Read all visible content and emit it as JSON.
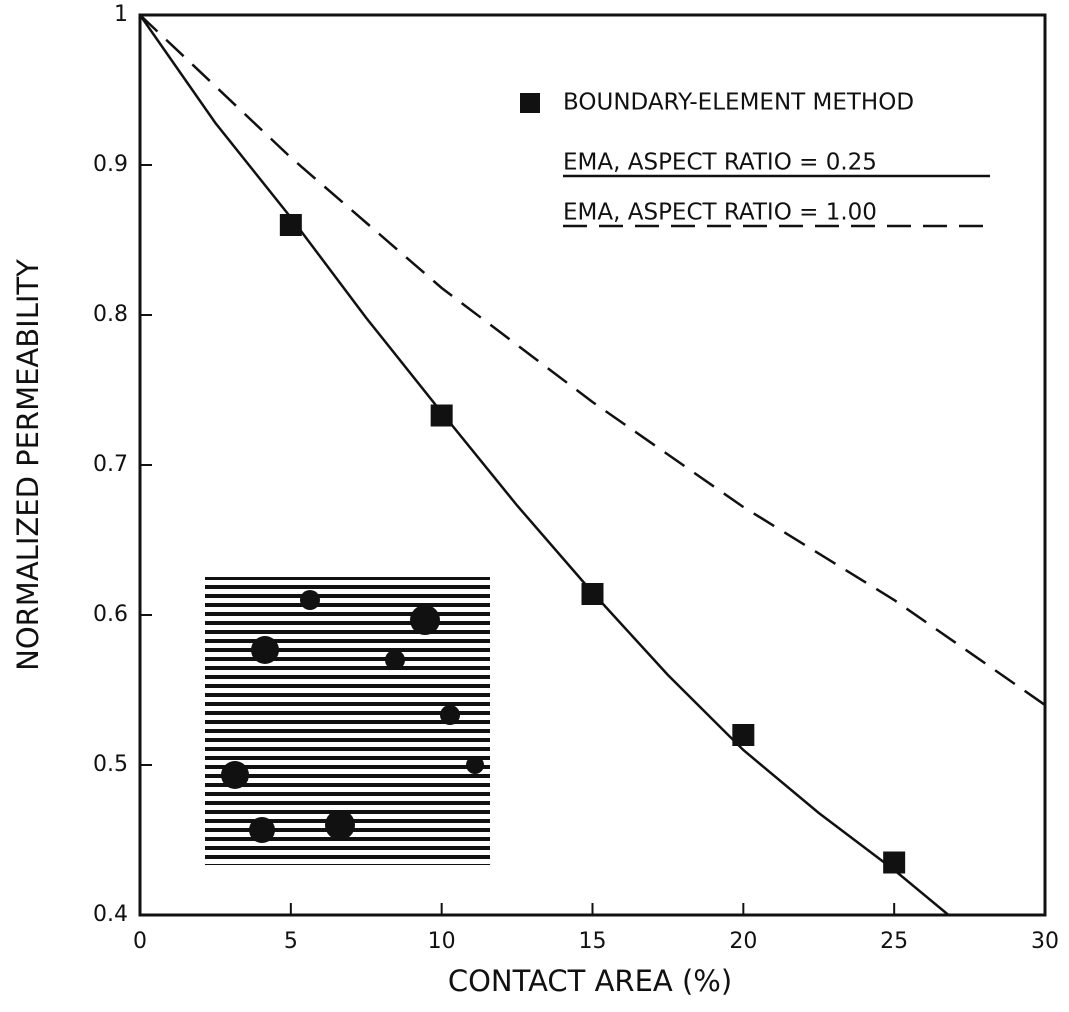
{
  "chart_data": {
    "type": "line",
    "x_label": "CONTACT AREA (%)",
    "y_label": "NORMALIZED PERMEABILITY",
    "xlim": [
      0,
      30
    ],
    "ylim": [
      0.4,
      1
    ],
    "xticks": [
      0,
      5,
      10,
      15,
      20,
      25,
      30
    ],
    "yticks": [
      0.4,
      0.5,
      0.6,
      0.7,
      0.8,
      0.9,
      1
    ],
    "series": [
      {
        "name": "BOUNDARY-ELEMENT METHOD",
        "color": "#111111",
        "style": "markers",
        "x": [
          5,
          10,
          15,
          20,
          25
        ],
        "values": [
          0.86,
          0.733,
          0.614,
          0.52,
          0.435
        ]
      },
      {
        "name": "EMA, ASPECT RATIO = 0.25",
        "color": "#111111",
        "style": "solid",
        "x": [
          0,
          2.5,
          5,
          7.5,
          10,
          12.5,
          15,
          17.5,
          20,
          22.5,
          25,
          26.8
        ],
        "values": [
          1,
          0.928,
          0.865,
          0.798,
          0.735,
          0.673,
          0.615,
          0.56,
          0.51,
          0.468,
          0.43,
          0.4
        ]
      },
      {
        "name": "EMA, ASPECT RATIO = 1.00",
        "color": "#111111",
        "style": "dashed",
        "x": [
          0,
          5,
          10,
          15,
          20,
          25,
          30
        ],
        "values": [
          1,
          0.905,
          0.818,
          0.742,
          0.672,
          0.61,
          0.54
        ]
      }
    ]
  }
}
